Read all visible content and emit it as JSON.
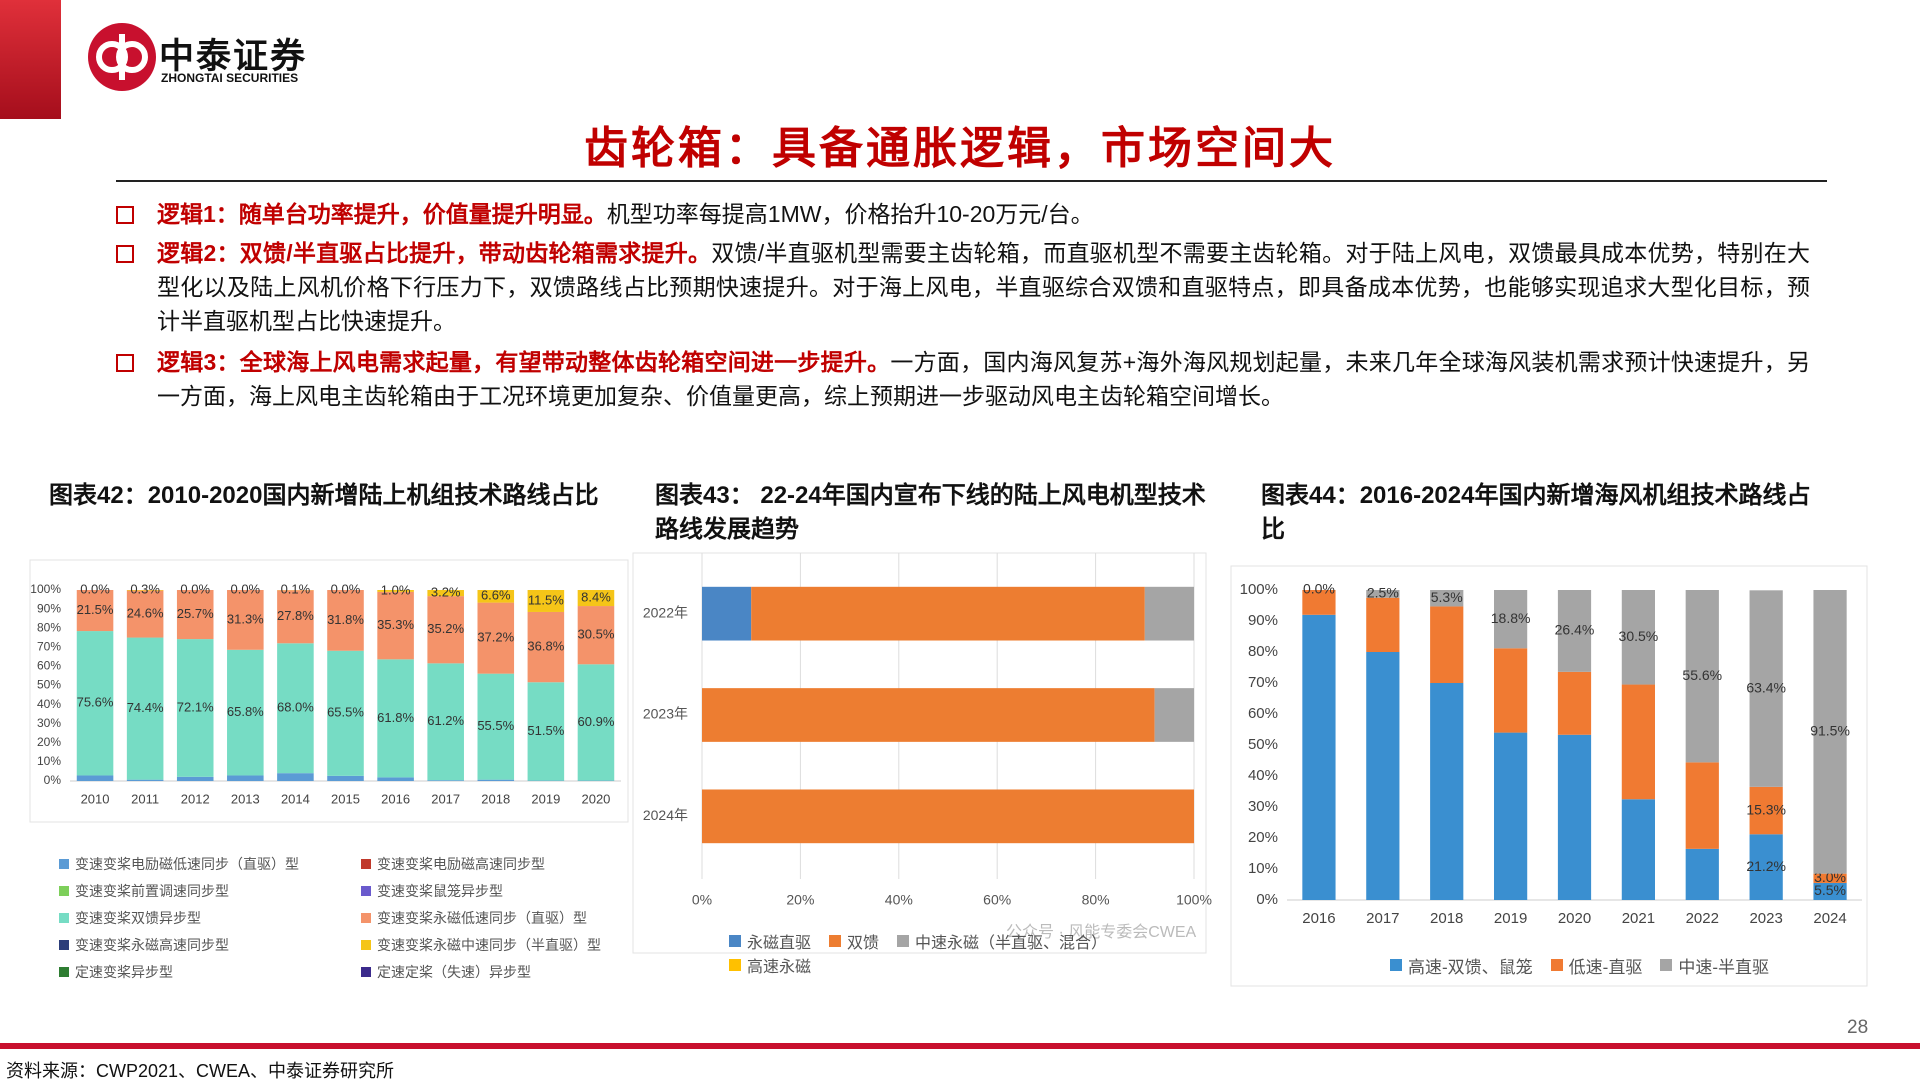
{
  "header": {
    "logo_cn": "中泰证券",
    "logo_en": "ZHONGTAI SECURITIES",
    "title": "齿轮箱：具备通胀逻辑，市场空间大"
  },
  "bullets": [
    {
      "lead": "逻辑1：随单台功率提升，价值量提升明显。",
      "text": "机型功率每提高1MW，价格抬升10-20万元/台。"
    },
    {
      "lead": "逻辑2：双馈/半直驱占比提升，带动齿轮箱需求提升。",
      "text": "双馈/半直驱机型需要主齿轮箱，而直驱机型不需要主齿轮箱。对于陆上风电，双馈最具成本优势，特别在大型化以及陆上风机价格下行压力下，双馈路线占比预期快速提升。对于海上风电，半直驱综合双馈和直驱特点，即具备成本优势，也能够实现追求大型化目标，预计半直驱机型占比快速提升。"
    },
    {
      "lead": "逻辑3：全球海上风电需求起量，有望带动整体齿轮箱空间进一步提升。",
      "text": "一方面，国内海风复苏+海外海风规划起量，未来几年全球海风装机需求预计快速提升，另一方面，海上风电主齿轮箱由于工况环境更加复杂、价值量更高，综上预期进一步驱动风电主齿轮箱空间增长。"
    }
  ],
  "chart_data": [
    {
      "type": "bar",
      "stacked": true,
      "title": "图表42：2010-2020国内新增陆上机组技术路线占比",
      "categories": [
        "2010",
        "2011",
        "2012",
        "2013",
        "2014",
        "2015",
        "2016",
        "2017",
        "2018",
        "2019",
        "2020"
      ],
      "ylim": [
        0,
        100
      ],
      "yticks": [
        {
          "value": 0,
          "label": "0%"
        },
        {
          "value": 10,
          "label": "10%"
        },
        {
          "value": 20,
          "label": "20%"
        },
        {
          "value": 30,
          "label": "30%"
        },
        {
          "value": 40,
          "label": "40%"
        },
        {
          "value": 50,
          "label": "50%"
        },
        {
          "value": 60,
          "label": "60%"
        },
        {
          "value": 70,
          "label": "70%"
        },
        {
          "value": 80,
          "label": "80%"
        },
        {
          "value": 90,
          "label": "90%"
        },
        {
          "value": 100,
          "label": "100%"
        }
      ],
      "grid": false,
      "series": [
        {
          "name": "变速变桨电励磁低速同步（直驱）型",
          "color": "#5b9bd5",
          "values": [
            2.9,
            0.7,
            2.2,
            2.9,
            4.1,
            2.7,
            1.9,
            0.4,
            0.7,
            0.2,
            0.2
          ]
        },
        {
          "name": "变速变桨电励磁高速同步型",
          "color": "#c0392b",
          "values": [
            0,
            0,
            0,
            0,
            0,
            0,
            0,
            0,
            0,
            0,
            0
          ]
        },
        {
          "name": "变速变桨前置调速同步型",
          "color": "#7dcf5a",
          "values": [
            0,
            0,
            0,
            0,
            0,
            0,
            0,
            0,
            0,
            0,
            0
          ]
        },
        {
          "name": "变速变桨鼠笼异步型",
          "color": "#6a5acd",
          "values": [
            0,
            0,
            0,
            0,
            0,
            0,
            0,
            0,
            0,
            0,
            0
          ]
        },
        {
          "name": "变速变桨双馈异步型",
          "color": "#76dcc4",
          "values": [
            75.6,
            74.4,
            72.1,
            65.8,
            68.0,
            65.5,
            61.8,
            61.2,
            55.5,
            51.5,
            60.9
          ],
          "value_labels": [
            "75.6%",
            "74.4%",
            "72.1%",
            "65.8%",
            "68.0%",
            "65.5%",
            "61.8%",
            "61.2%",
            "55.5%",
            "51.5%",
            "60.9%"
          ]
        },
        {
          "name": "变速变桨永磁低速同步（直驱）型",
          "color": "#f4936a",
          "values": [
            21.5,
            24.6,
            25.7,
            31.3,
            27.8,
            31.8,
            35.3,
            35.2,
            37.2,
            36.8,
            30.5
          ],
          "value_labels": [
            "21.5%",
            "24.6%",
            "25.7%",
            "31.3%",
            "27.8%",
            "31.8%",
            "35.3%",
            "35.2%",
            "37.2%",
            "36.8%",
            "30.5%"
          ]
        },
        {
          "name": "变速变桨永磁高速同步型",
          "color": "#2c3e7a",
          "values": [
            0,
            0,
            0,
            0,
            0,
            0,
            0,
            0,
            0,
            0,
            0
          ]
        },
        {
          "name": "变速变桨永磁中速同步（半直驱）型",
          "color": "#f5c518",
          "values": [
            0.0,
            0.3,
            0.0,
            0.0,
            0.1,
            0.0,
            1.0,
            3.2,
            6.6,
            11.5,
            8.4
          ],
          "value_labels": [
            "0.0%",
            "0.3%",
            "0.0%",
            "0.0%",
            "0.1%",
            "0.0%",
            "1.0%",
            "3.2%",
            "6.6%",
            "11.5%",
            "8.4%"
          ]
        },
        {
          "name": "定速变桨异步型",
          "color": "#2e7d32",
          "values": [
            0,
            0,
            0,
            0,
            0,
            0,
            0,
            0,
            0,
            0,
            0
          ]
        },
        {
          "name": "定速定桨（失速）异步型",
          "color": "#3b2a8c",
          "values": [
            0,
            0,
            0,
            0,
            0,
            0,
            0,
            0,
            0,
            0,
            0
          ]
        }
      ]
    },
    {
      "type": "bar",
      "stacked": true,
      "orientation": "horizontal",
      "title": "图表43： 22-24年国内宣布下线的陆上风电机型技术路线发展趋势",
      "categories": [
        "2022年",
        "2023年",
        "2024年"
      ],
      "xlim": [
        0,
        100
      ],
      "xticks": [
        {
          "value": 0,
          "label": "0%"
        },
        {
          "value": 20,
          "label": "20%"
        },
        {
          "value": 40,
          "label": "40%"
        },
        {
          "value": 60,
          "label": "60%"
        },
        {
          "value": 80,
          "label": "80%"
        },
        {
          "value": 100,
          "label": "100%"
        }
      ],
      "grid": true,
      "annotation": "公众号 · 风能专委会CWEA",
      "series": [
        {
          "name": "永磁直驱",
          "color": "#4a86c5",
          "values": [
            10,
            0,
            0
          ]
        },
        {
          "name": "双馈",
          "color": "#ed7d31",
          "values": [
            80,
            92,
            100
          ]
        },
        {
          "name": "中速永磁（半直驱、混合）",
          "color": "#a5a5a5",
          "values": [
            10,
            8,
            0
          ]
        },
        {
          "name": "高速永磁",
          "color": "#ffc000",
          "values": [
            0,
            0,
            0
          ]
        }
      ]
    },
    {
      "type": "bar",
      "stacked": true,
      "title": "图表44：2016-2024年国内新增海风机组技术路线占比",
      "categories": [
        "2016",
        "2017",
        "2018",
        "2019",
        "2020",
        "2021",
        "2022",
        "2023",
        "2024"
      ],
      "ylim": [
        0,
        100
      ],
      "yticks": [
        {
          "value": 0,
          "label": "0%"
        },
        {
          "value": 10,
          "label": "10%"
        },
        {
          "value": 20,
          "label": "20%"
        },
        {
          "value": 30,
          "label": "30%"
        },
        {
          "value": 40,
          "label": "40%"
        },
        {
          "value": 50,
          "label": "50%"
        },
        {
          "value": 60,
          "label": "60%"
        },
        {
          "value": 70,
          "label": "70%"
        },
        {
          "value": 80,
          "label": "80%"
        },
        {
          "value": 90,
          "label": "90%"
        },
        {
          "value": 100,
          "label": "100%"
        }
      ],
      "grid": false,
      "series": [
        {
          "name": "高速-双馈、鼠笼",
          "color": "#3a8fd0",
          "values": [
            92,
            80,
            70,
            54,
            53.3,
            32.5,
            16.5,
            21.2,
            5.5
          ],
          "value_labels": [
            null,
            null,
            null,
            null,
            null,
            null,
            null,
            "21.2%",
            "5.5%"
          ]
        },
        {
          "name": "低速-直驱",
          "color": "#f07a32",
          "values": [
            8,
            17.5,
            24.7,
            27.2,
            20.3,
            37,
            27.9,
            15.3,
            3.0
          ],
          "value_labels": [
            null,
            null,
            null,
            null,
            null,
            null,
            null,
            "15.3%",
            "3.0%"
          ]
        },
        {
          "name": "中速-半直驱",
          "color": "#a5a5a5",
          "values": [
            0.0,
            2.5,
            5.3,
            18.8,
            26.4,
            30.5,
            55.6,
            63.4,
            91.5
          ],
          "value_labels": [
            "0.0%",
            "2.5%",
            "5.3%",
            "18.8%",
            "26.4%",
            "30.5%",
            "55.6%",
            "63.4%",
            "91.5%"
          ]
        }
      ]
    }
  ],
  "footer": {
    "page": "28",
    "source": "资料来源：CWP2021、CWEA、中泰证券研究所"
  }
}
